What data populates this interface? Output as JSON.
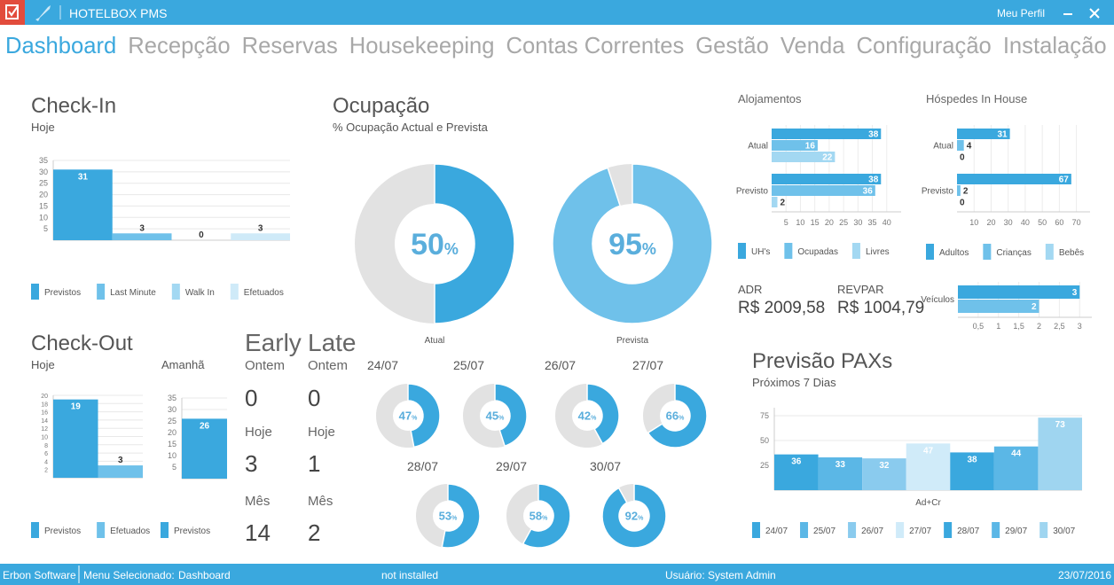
{
  "header": {
    "app_title": "HOTELBOX PMS",
    "profile": "Meu Perfil"
  },
  "nav": {
    "items": [
      "Dashboard",
      "Recepção",
      "Reservas",
      "Housekeeping",
      "Contas Correntes",
      "Gestão",
      "Venda",
      "Configuração",
      "Instalação"
    ],
    "active": 0
  },
  "checkin": {
    "title": "Check-In",
    "subtitle": "Hoje",
    "series": [
      {
        "name": "Previstos",
        "color": "#3aa8de",
        "values": [
          31
        ]
      },
      {
        "name": "Last Minute",
        "color": "#6fc1ea",
        "values": [
          3
        ]
      },
      {
        "name": "Walk In",
        "color": "#a3d8f2",
        "values": [
          0
        ]
      },
      {
        "name": "Efetuados",
        "color": "#cfeaf8",
        "values": [
          3
        ]
      }
    ],
    "ylim": [
      0,
      35
    ],
    "yticks": [
      5,
      10,
      15,
      20,
      25,
      30,
      35
    ]
  },
  "ocupacao": {
    "title": "Ocupação",
    "subtitle": "% Ocupação Actual e Prevista",
    "percent_sign": "%",
    "donuts": [
      {
        "label": "Atual",
        "value": 50,
        "color": "#3aa8de"
      },
      {
        "label": "Prevista",
        "value": 95,
        "color": "#6fc1ea"
      }
    ]
  },
  "checkout": {
    "title": "Check-Out",
    "hoje": {
      "subtitle": "Hoje",
      "series": [
        {
          "name": "Previstos",
          "color": "#3aa8de",
          "values": [
            19
          ]
        },
        {
          "name": "Efetuados",
          "color": "#6fc1ea",
          "values": [
            3
          ]
        }
      ],
      "ylim": [
        0,
        20
      ],
      "yticks": [
        2,
        4,
        6,
        8,
        10,
        12,
        14,
        16,
        18,
        20
      ]
    },
    "amanha": {
      "subtitle": "Amanhã",
      "series": [
        {
          "name": "Previstos",
          "color": "#3aa8de",
          "values": [
            26
          ]
        }
      ],
      "ylim": [
        0,
        35
      ],
      "yticks": [
        5,
        10,
        15,
        20,
        25,
        30,
        35
      ]
    }
  },
  "early": {
    "title": "Early",
    "rows": [
      {
        "label": "Ontem",
        "value": 0
      },
      {
        "label": "Hoje",
        "value": 3
      },
      {
        "label": "Mês",
        "value": 14
      }
    ]
  },
  "late": {
    "title": "Late",
    "rows": [
      {
        "label": "Ontem",
        "value": 0
      },
      {
        "label": "Hoje",
        "value": 1
      },
      {
        "label": "Mês",
        "value": 2
      }
    ]
  },
  "daily": {
    "color": "#3aa8de",
    "donuts": [
      {
        "date": "24/07",
        "value": 47
      },
      {
        "date": "25/07",
        "value": 45
      },
      {
        "date": "26/07",
        "value": 42
      },
      {
        "date": "27/07",
        "value": 66
      },
      {
        "date": "28/07",
        "value": 53
      },
      {
        "date": "29/07",
        "value": 58
      },
      {
        "date": "30/07",
        "value": 92
      }
    ]
  },
  "alojamentos": {
    "title": "Alojamentos",
    "categories": [
      "Atual",
      "Previsto"
    ],
    "series": [
      {
        "name": "UH's",
        "color": "#3aa8de",
        "values": [
          38,
          38
        ]
      },
      {
        "name": "Ocupadas",
        "color": "#6fc1ea",
        "values": [
          16,
          36
        ]
      },
      {
        "name": "Livres",
        "color": "#a3d8f2",
        "values": [
          22,
          2
        ]
      }
    ],
    "xlim": [
      0,
      45
    ],
    "xticks": [
      5,
      10,
      15,
      20,
      25,
      30,
      35,
      40
    ]
  },
  "hospedes": {
    "title": "Hóspedes In House",
    "categories": [
      "Atual",
      "Previsto"
    ],
    "series": [
      {
        "name": "Adultos",
        "color": "#3aa8de",
        "values": [
          31,
          67
        ]
      },
      {
        "name": "Crianças",
        "color": "#6fc1ea",
        "values": [
          4,
          2
        ]
      },
      {
        "name": "Bebês",
        "color": "#a3d8f2",
        "values": [
          0,
          0
        ]
      }
    ],
    "xlim": [
      0,
      78
    ],
    "xticks": [
      10,
      20,
      30,
      40,
      50,
      60,
      70
    ]
  },
  "veiculos": {
    "categories": [
      "Veículos"
    ],
    "series": [
      {
        "color": "#3aa8de",
        "values": [
          3
        ]
      },
      {
        "color": "#6fc1ea",
        "values": [
          2
        ]
      }
    ],
    "xlim": [
      0,
      3.3
    ],
    "xticks": [
      {
        "value": 0.5,
        "label": "0,5"
      },
      1,
      {
        "value": 1.5,
        "label": "1,5"
      },
      2,
      {
        "value": 2.5,
        "label": "2,5"
      },
      3
    ]
  },
  "kpis": [
    {
      "label": "ADR",
      "value": "R$ 2009,58"
    },
    {
      "label": "REVPAR",
      "value": "R$ 1004,79"
    }
  ],
  "pax": {
    "title": "Previsão PAXs",
    "subtitle": "Próximos 7 Dias",
    "categories": [
      "Ad+Cr"
    ],
    "series": [
      {
        "name": "24/07",
        "color": "#3aa8de",
        "values": [
          36
        ]
      },
      {
        "name": "25/07",
        "color": "#5bb7e6",
        "values": [
          33
        ]
      },
      {
        "name": "26/07",
        "color": "#8acbee",
        "values": [
          32
        ]
      },
      {
        "name": "27/07",
        "color": "#d0ebf9",
        "values": [
          47
        ]
      },
      {
        "name": "28/07",
        "color": "#3aa8de",
        "values": [
          38
        ]
      },
      {
        "name": "29/07",
        "color": "#5bb7e6",
        "values": [
          44
        ]
      },
      {
        "name": "30/07",
        "color": "#9fd5f0",
        "values": [
          73
        ]
      }
    ],
    "ylim": [
      0,
      83
    ],
    "yticks": [
      25,
      50,
      75
    ]
  },
  "footer": {
    "company": "Erbon Software",
    "menu_label": "Menu Selecionado:",
    "menu_value": "Dashboard",
    "status": "not installed",
    "user": "Usuário: System Admin",
    "date": "23/07/2016"
  }
}
